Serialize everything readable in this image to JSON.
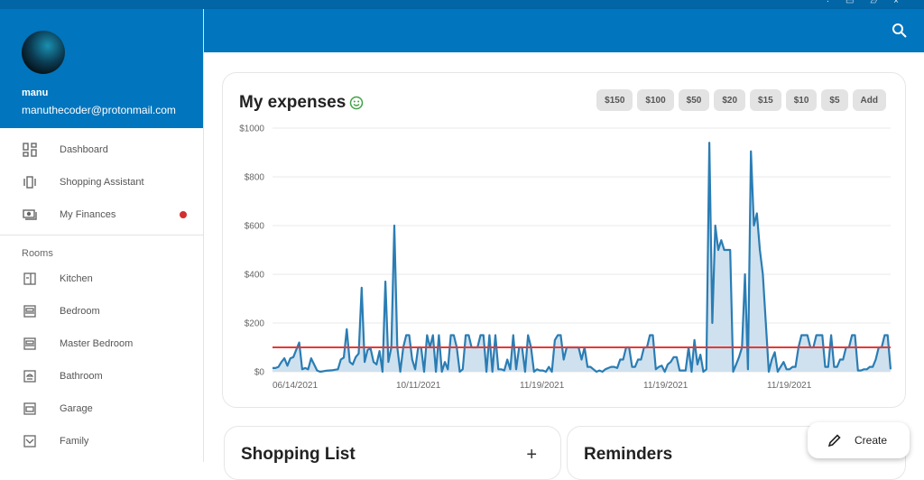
{
  "user": {
    "name": "manu",
    "email": "manuthecoder@protonmail.com"
  },
  "nav": [
    {
      "label": "Dashboard",
      "icon": "dashboard-icon"
    },
    {
      "label": "Shopping Assistant",
      "icon": "view-carousel-icon"
    },
    {
      "label": "My Finances",
      "icon": "payments-icon",
      "badge": true
    }
  ],
  "rooms_title": "Rooms",
  "rooms": [
    {
      "label": "Kitchen",
      "icon": "kitchen-icon"
    },
    {
      "label": "Bedroom",
      "icon": "bed-icon"
    },
    {
      "label": "Master Bedroom",
      "icon": "bed-icon"
    },
    {
      "label": "Bathroom",
      "icon": "shower-icon"
    },
    {
      "label": "Garage",
      "icon": "car-icon"
    },
    {
      "label": "Family",
      "icon": "couch-icon"
    }
  ],
  "expenses": {
    "title": "My expenses",
    "buttons": [
      "$150",
      "$100",
      "$50",
      "$20",
      "$15",
      "$10",
      "$5",
      "Add"
    ]
  },
  "cards": {
    "shopping": "Shopping List",
    "reminders": "Reminders"
  },
  "fab": {
    "label": "Create"
  },
  "colors": {
    "primary": "#0175bd",
    "line": "#2a7db4",
    "fill": "#cfe1ee",
    "threshold": "#e53935",
    "badge": "#d32f2f",
    "smile": "#43a047"
  },
  "chart_data": {
    "type": "area",
    "ylim": [
      0,
      1000
    ],
    "yticks": [
      "$0",
      "$200",
      "$400",
      "$600",
      "$800",
      "$1000"
    ],
    "xtick_labels": [
      "06/14/2021",
      "10/11/2021",
      "11/19/2021",
      "11/19/2021",
      "11/19/2021"
    ],
    "threshold": 100,
    "grid": true,
    "values": [
      15,
      15,
      20,
      40,
      55,
      25,
      55,
      60,
      90,
      120,
      10,
      15,
      10,
      55,
      30,
      5,
      0,
      2,
      4,
      5,
      6,
      8,
      10,
      50,
      58,
      175,
      40,
      30,
      60,
      75,
      345,
      40,
      90,
      95,
      40,
      30,
      85,
      0,
      370,
      40,
      100,
      600,
      100,
      0,
      100,
      150,
      150,
      50,
      10,
      100,
      100,
      0,
      150,
      100,
      150,
      0,
      150,
      0,
      40,
      10,
      150,
      150,
      100,
      0,
      10,
      150,
      150,
      100,
      100,
      100,
      150,
      150,
      0,
      150,
      0,
      150,
      10,
      10,
      5,
      50,
      10,
      150,
      10,
      100,
      100,
      0,
      150,
      100,
      0,
      10,
      5,
      5,
      0,
      20,
      0,
      130,
      150,
      150,
      50,
      100,
      100,
      100,
      100,
      100,
      50,
      100,
      20,
      20,
      10,
      0,
      5,
      0,
      10,
      15,
      20,
      20,
      15,
      50,
      50,
      100,
      100,
      20,
      20,
      50,
      50,
      100,
      100,
      150,
      150,
      10,
      20,
      25,
      0,
      30,
      40,
      60,
      60,
      5,
      5,
      5,
      100,
      0,
      130,
      30,
      70,
      0,
      10,
      940,
      200,
      600,
      500,
      540,
      500,
      500,
      500,
      0,
      30,
      60,
      100,
      400,
      10,
      905,
      600,
      650,
      500,
      400,
      200,
      0,
      50,
      80,
      0,
      20,
      40,
      10,
      10,
      20,
      20,
      100,
      150,
      150,
      150,
      100,
      100,
      150,
      150,
      150,
      20,
      20,
      150,
      20,
      20,
      50,
      50,
      100,
      100,
      150,
      150,
      5,
      5,
      10,
      10,
      20,
      20,
      50,
      100,
      100,
      150,
      150,
      10
    ]
  }
}
